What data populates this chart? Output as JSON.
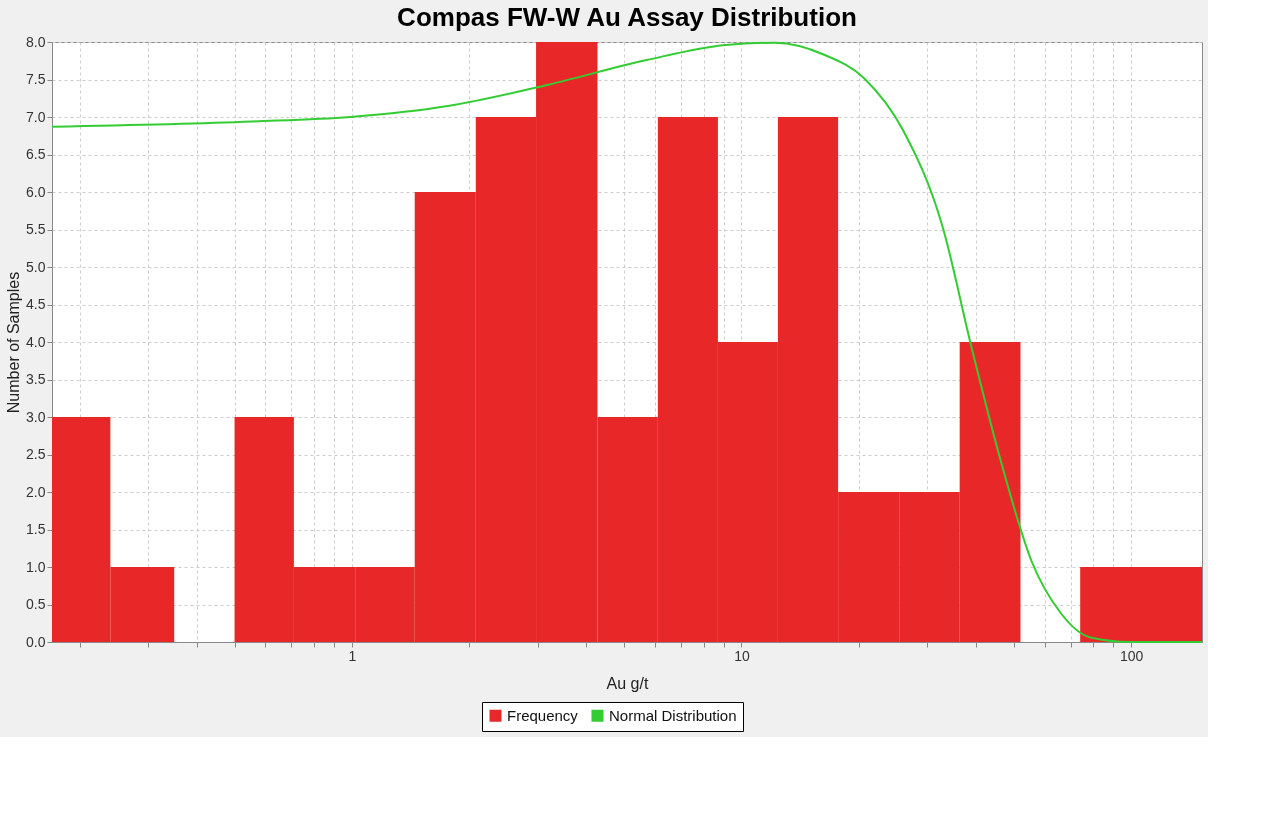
{
  "chart_data": {
    "type": "histogram",
    "title": "Compas FW-W Au Assay Distribution",
    "xlabel": "Au g/t",
    "ylabel": "Number of Samples",
    "bins": [
      0.17,
      0.24,
      0.35,
      0.5,
      0.71,
      1.02,
      1.45,
      2.08,
      2.97,
      4.27,
      6.1,
      8.7,
      12.4,
      17.7,
      25.4,
      36.3,
      52,
      74,
      106,
      152
    ],
    "series": [
      {
        "name": "Frequency",
        "color": "#e82828",
        "values": [
          3,
          1,
          0,
          3,
          1,
          1,
          6,
          7,
          8,
          3,
          7,
          4,
          7,
          2,
          2,
          4,
          0,
          1,
          1
        ]
      },
      {
        "name": "Normal Distribution",
        "type": "line",
        "color": "#33cc33",
        "x": [
          0.17,
          0.555,
          0.99,
          1.78,
          3.19,
          5.71,
          9.11,
          12.2,
          16.3,
          20.6,
          26.0,
          32.8,
          39.1,
          46.6,
          55.5,
          66.1,
          78.7,
          99.4,
          152
        ],
        "values": [
          6.87,
          6.94,
          7.0,
          7.15,
          7.43,
          7.76,
          7.96,
          7.99,
          7.83,
          7.52,
          6.82,
          5.54,
          3.89,
          2.36,
          1.08,
          0.38,
          0.06,
          0,
          0
        ]
      }
    ],
    "log": "x",
    "xlim": [
      0.17,
      152
    ],
    "xticks": [
      {
        "value": 0.2,
        "label": null
      },
      {
        "value": 0.3,
        "label": null
      },
      {
        "value": 0.4,
        "label": null
      },
      {
        "value": 0.5,
        "label": null
      },
      {
        "value": 0.6,
        "label": null
      },
      {
        "value": 0.7,
        "label": null
      },
      {
        "value": 0.8,
        "label": null
      },
      {
        "value": 0.9,
        "label": null
      },
      1,
      {
        "value": 2,
        "label": null
      },
      {
        "value": 3,
        "label": null
      },
      {
        "value": 4,
        "label": null
      },
      {
        "value": 5,
        "label": null
      },
      {
        "value": 6,
        "label": null
      },
      {
        "value": 7,
        "label": null
      },
      {
        "value": 8,
        "label": null
      },
      {
        "value": 9,
        "label": null
      },
      10,
      {
        "value": 20,
        "label": null
      },
      {
        "value": 30,
        "label": null
      },
      {
        "value": 40,
        "label": null
      },
      {
        "value": 50,
        "label": null
      },
      {
        "value": 60,
        "label": null
      },
      {
        "value": 70,
        "label": null
      },
      {
        "value": 80,
        "label": null
      },
      {
        "value": 90,
        "label": null
      },
      100
    ],
    "ylim": [
      0,
      8
    ],
    "yticks": [
      {
        "value": 0,
        "label": "0.0"
      },
      {
        "value": 0.5,
        "label": "0.5"
      },
      {
        "value": 1,
        "label": "1.0"
      },
      {
        "value": 1.5,
        "label": "1.5"
      },
      {
        "value": 2,
        "label": "2.0"
      },
      {
        "value": 2.5,
        "label": "2.5"
      },
      {
        "value": 3,
        "label": "3.0"
      },
      {
        "value": 3.5,
        "label": "3.5"
      },
      {
        "value": 4,
        "label": "4.0"
      },
      {
        "value": 4.5,
        "label": "4.5"
      },
      {
        "value": 5,
        "label": "5.0"
      },
      {
        "value": 5.5,
        "label": "5.5"
      },
      {
        "value": 6,
        "label": "6.0"
      },
      {
        "value": 6.5,
        "label": "6.5"
      },
      {
        "value": 7,
        "label": "7.0"
      },
      {
        "value": 7.5,
        "label": "7.5"
      },
      {
        "value": 8,
        "label": "8.0"
      }
    ],
    "grid": true,
    "legend": "bottom",
    "marker": "none",
    "line_style": "solid"
  }
}
